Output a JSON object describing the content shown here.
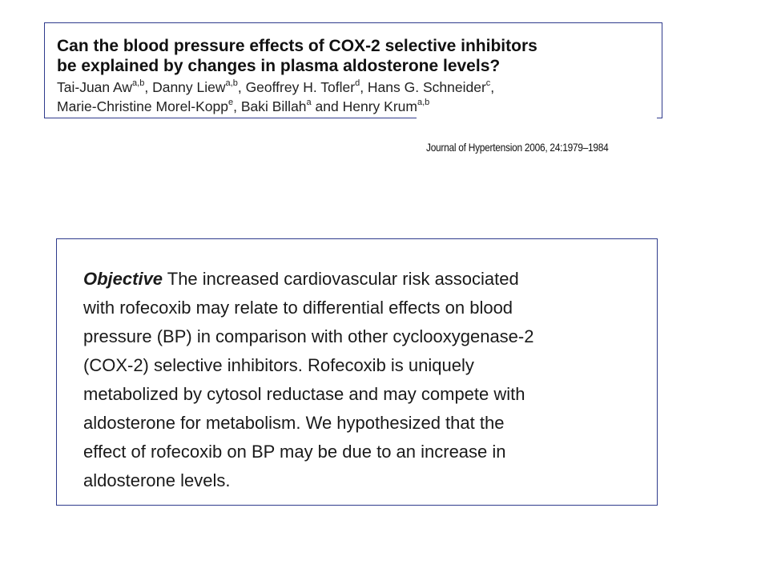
{
  "paper": {
    "title_line1": "Can the blood pressure effects of COX-2 selective inhibitors",
    "title_line2": "be explained by changes in plasma aldosterone levels?",
    "authors": [
      {
        "name": "Tai-Juan Aw",
        "aff": "a,b",
        "sep": ", "
      },
      {
        "name": "Danny Liew",
        "aff": "a,b",
        "sep": ", "
      },
      {
        "name": "Geoffrey H. Tofler",
        "aff": "d",
        "sep": ", "
      },
      {
        "name": "Hans G. Schneider",
        "aff": "c",
        "sep": ","
      },
      {
        "name": "Marie-Christine Morel-Kopp",
        "aff": "e",
        "sep": ", "
      },
      {
        "name": "Baki Billah",
        "aff": "a",
        "sep": " and "
      },
      {
        "name": "Henry Krum",
        "aff": "a,b",
        "sep": ""
      }
    ],
    "citation": "Journal of Hypertension 2006, 24:1979–1984"
  },
  "abstract": {
    "label": "Objective",
    "lines": [
      " The increased cardiovascular risk associated",
      "with rofecoxib may relate to differential effects on blood",
      "pressure (BP) in comparison with other cyclooxygenase-2",
      "(COX-2) selective inhibitors. Rofecoxib is uniquely",
      "metabolized by cytosol reductase and may compete with",
      "aldosterone for metabolism. We hypothesized that the",
      "effect of rofecoxib on BP may be due to an increase in",
      "aldosterone levels."
    ]
  }
}
